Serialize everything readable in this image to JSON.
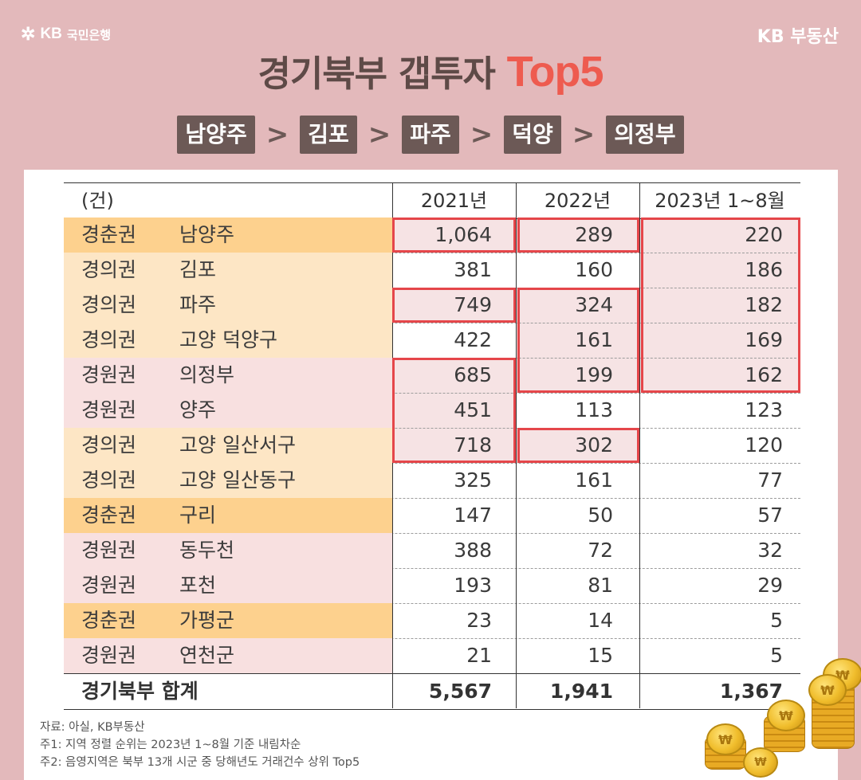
{
  "brand": {
    "left_symbol": "✲",
    "left_name": "KB",
    "left_bank": "국민은행",
    "right": "KB 부동산"
  },
  "title": {
    "main": "경기북부 갭투자 ",
    "accent": "Top5"
  },
  "route": [
    "남양주",
    "김포",
    "파주",
    "덕양",
    "의정부"
  ],
  "route_separator": ">",
  "table": {
    "unit": "(건)",
    "columns": [
      "2021년",
      "2022년",
      "2023년 1~8월"
    ],
    "rows": [
      {
        "region": "경춘권",
        "name": "남양주",
        "y2021": "1,064",
        "y2022": "289",
        "y2023": "220",
        "zone": "gyeongchun"
      },
      {
        "region": "경의권",
        "name": "김포",
        "y2021": "381",
        "y2022": "160",
        "y2023": "186",
        "zone": "gyeongui"
      },
      {
        "region": "경의권",
        "name": "파주",
        "y2021": "749",
        "y2022": "324",
        "y2023": "182",
        "zone": "gyeongui"
      },
      {
        "region": "경의권",
        "name": "고양 덕양구",
        "y2021": "422",
        "y2022": "161",
        "y2023": "169",
        "zone": "gyeongui"
      },
      {
        "region": "경원권",
        "name": "의정부",
        "y2021": "685",
        "y2022": "199",
        "y2023": "162",
        "zone": "gyeongwon"
      },
      {
        "region": "경원권",
        "name": "양주",
        "y2021": "451",
        "y2022": "113",
        "y2023": "123",
        "zone": "gyeongwon"
      },
      {
        "region": "경의권",
        "name": "고양 일산서구",
        "y2021": "718",
        "y2022": "302",
        "y2023": "120",
        "zone": "gyeongui"
      },
      {
        "region": "경의권",
        "name": "고양 일산동구",
        "y2021": "325",
        "y2022": "161",
        "y2023": "77",
        "zone": "gyeongui"
      },
      {
        "region": "경춘권",
        "name": "구리",
        "y2021": "147",
        "y2022": "50",
        "y2023": "57",
        "zone": "gyeongchun"
      },
      {
        "region": "경원권",
        "name": "동두천",
        "y2021": "388",
        "y2022": "72",
        "y2023": "32",
        "zone": "gyeongwon"
      },
      {
        "region": "경원권",
        "name": "포천",
        "y2021": "193",
        "y2022": "81",
        "y2023": "29",
        "zone": "gyeongwon"
      },
      {
        "region": "경춘권",
        "name": "가평군",
        "y2021": "23",
        "y2022": "14",
        "y2023": "5",
        "zone": "gyeongchun"
      },
      {
        "region": "경원권",
        "name": "연천군",
        "y2021": "21",
        "y2022": "15",
        "y2023": "5",
        "zone": "gyeongwon"
      }
    ],
    "total": {
      "label": "경기북부 합계",
      "y2021": "5,567",
      "y2022": "1,941",
      "y2023": "1,367"
    }
  },
  "zone_colors": {
    "gyeongchun": "#fdd18e",
    "gyeongui": "#fde6c5",
    "gyeongwon": "#f8e0e0"
  },
  "highlight_color": "#e5464a",
  "notes": [
    "자료: 아실, KB부동산",
    "주1: 지역 정렬 순위는 2023년 1~8월 기준 내림차순",
    "주2: 음영지역은 북부 13개 시군 중 당해년도 거래건수 상위 Top5"
  ],
  "coin_symbol": "₩"
}
